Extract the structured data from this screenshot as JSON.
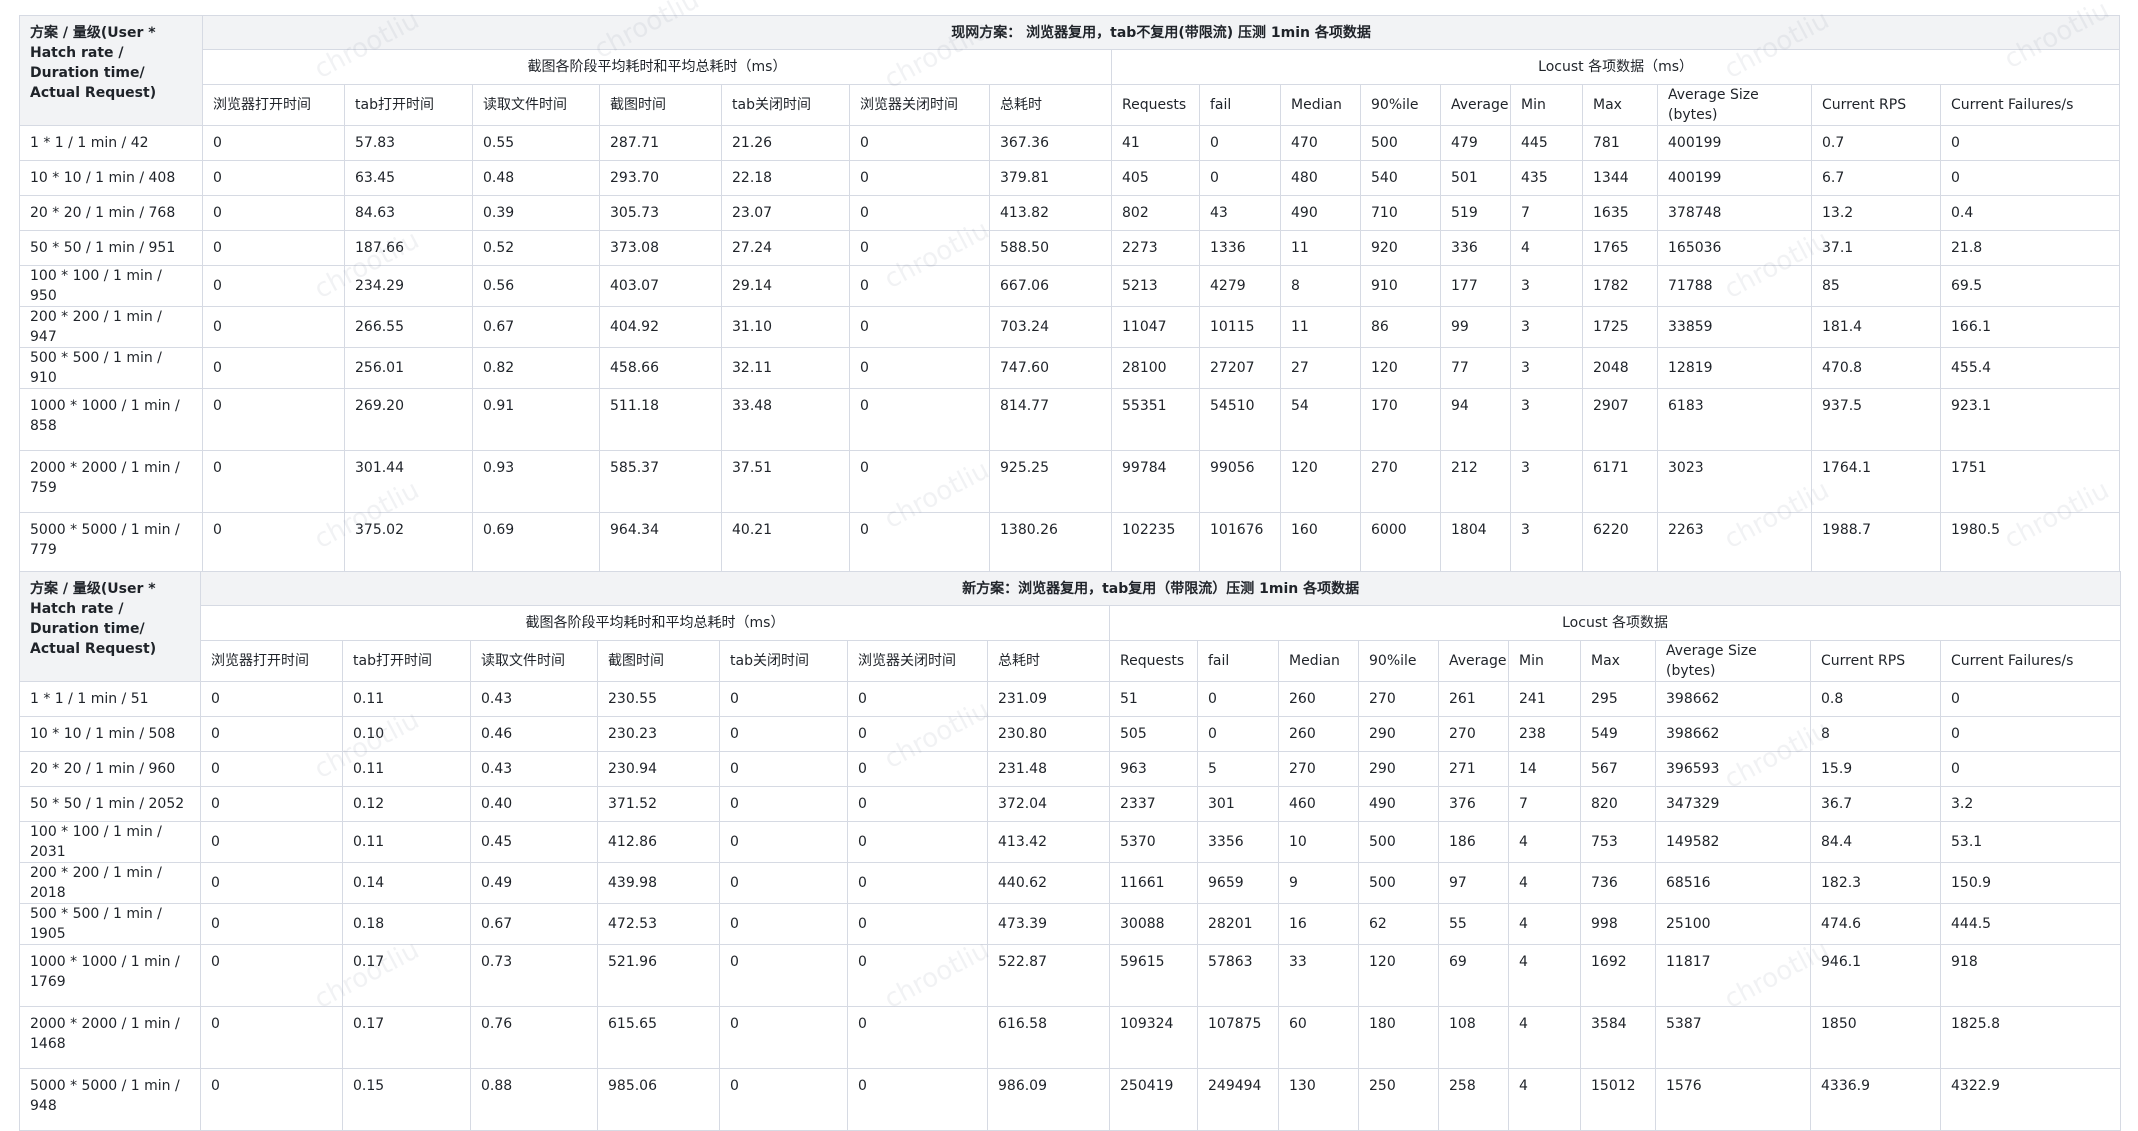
{
  "tables": [
    {
      "corner": "方案 / 量级(User * Hatch rate /  Duration time/ Actual Request)",
      "title": "现网方案：  浏览器复用，tab不复用(带限流) 压测 1min 各项数据",
      "group_left": "截图各阶段平均耗时和平均总耗时（ms）",
      "group_right": "Locust 各项数据（ms）",
      "columns": [
        "浏览器打开时间",
        "tab打开时间",
        "读取文件时间",
        "截图时间",
        "tab关闭时间",
        "浏览器关闭时间",
        "总耗时",
        "Requests",
        "fail",
        "Median",
        "90%ile",
        "Average",
        "Min",
        "Max",
        "Average Size (bytes)",
        "Current RPS",
        "Current Failures/s"
      ],
      "rows": [
        [
          "1 * 1 / 1 min / 42",
          "0",
          "57.83",
          "0.55",
          "287.71",
          "21.26",
          "0",
          "367.36",
          "41",
          "0",
          "470",
          "500",
          "479",
          "445",
          "781",
          "400199",
          "0.7",
          "0"
        ],
        [
          "10 * 10 / 1 min / 408",
          "0",
          "63.45",
          "0.48",
          "293.70",
          "22.18",
          "0",
          "379.81",
          "405",
          "0",
          "480",
          "540",
          "501",
          "435",
          "1344",
          "400199",
          "6.7",
          "0"
        ],
        [
          "20 * 20 / 1 min / 768",
          "0",
          "84.63",
          "0.39",
          "305.73",
          "23.07",
          "0",
          "413.82",
          "802",
          "43",
          "490",
          "710",
          "519",
          "7",
          "1635",
          "378748",
          "13.2",
          "0.4"
        ],
        [
          "50 * 50 / 1 min / 951",
          "0",
          "187.66",
          "0.52",
          "373.08",
          "27.24",
          "0",
          "588.50",
          "2273",
          "1336",
          "11",
          "920",
          "336",
          "4",
          "1765",
          "165036",
          "37.1",
          "21.8"
        ],
        [
          "100 * 100 / 1 min / 950",
          "0",
          "234.29",
          "0.56",
          "403.07",
          "29.14",
          "0",
          "667.06",
          "5213",
          "4279",
          "8",
          "910",
          "177",
          "3",
          "1782",
          "71788",
          "85",
          "69.5"
        ],
        [
          "200 * 200 / 1 min / 947",
          "0",
          "266.55",
          "0.67",
          "404.92",
          "31.10",
          "0",
          "703.24",
          "11047",
          "10115",
          "11",
          "86",
          "99",
          "3",
          "1725",
          "33859",
          "181.4",
          "166.1"
        ],
        [
          "500 * 500 / 1 min / 910",
          "0",
          "256.01",
          "0.82",
          "458.66",
          "32.11",
          "0",
          "747.60",
          "28100",
          "27207",
          "27",
          "120",
          "77",
          "3",
          "2048",
          "12819",
          "470.8",
          "455.4"
        ],
        [
          "1000 * 1000 / 1 min / 858",
          "0",
          "269.20",
          "0.91",
          "511.18",
          "33.48",
          "0",
          "814.77",
          "55351",
          "54510",
          "54",
          "170",
          "94",
          "3",
          "2907",
          "6183",
          "937.5",
          "923.1"
        ],
        [
          "2000 * 2000 / 1 min / 759",
          "0",
          "301.44",
          "0.93",
          "585.37",
          "37.51",
          "0",
          "925.25",
          "99784",
          "99056",
          "120",
          "270",
          "212",
          "3",
          "6171",
          "3023",
          "1764.1",
          "1751"
        ],
        [
          "5000 * 5000 / 1 min / 779",
          "0",
          "375.02",
          "0.69",
          "964.34",
          "40.21",
          "0",
          "1380.26",
          "102235",
          "101676",
          "160",
          "6000",
          "1804",
          "3",
          "6220",
          "2263",
          "1988.7",
          "1980.5"
        ]
      ]
    },
    {
      "corner": "方案 / 量级(User * Hatch rate /  Duration time/ Actual Request)",
      "title": "新方案：浏览器复用，tab复用（带限流）压测 1min 各项数据",
      "group_left": "截图各阶段平均耗时和平均总耗时（ms）",
      "group_right": "Locust 各项数据",
      "columns": [
        "浏览器打开时间",
        "tab打开时间",
        "读取文件时间",
        "截图时间",
        "tab关闭时间",
        "浏览器关闭时间",
        "总耗时",
        "Requests",
        "fail",
        "Median",
        "90%ile",
        "Average",
        "Min",
        "Max",
        "Average Size (bytes)",
        "Current RPS",
        "Current Failures/s"
      ],
      "rows": [
        [
          "1 * 1 / 1 min / 51",
          "0",
          "0.11",
          "0.43",
          "230.55",
          "0",
          "0",
          "231.09",
          "51",
          "0",
          "260",
          "270",
          "261",
          "241",
          "295",
          "398662",
          "0.8",
          "0"
        ],
        [
          "10 * 10 / 1 min / 508",
          "0",
          "0.10",
          "0.46",
          "230.23",
          "0",
          "0",
          "230.80",
          "505",
          "0",
          "260",
          "290",
          "270",
          "238",
          "549",
          "398662",
          "8",
          "0"
        ],
        [
          "20 * 20 / 1 min / 960",
          "0",
          "0.11",
          "0.43",
          "230.94",
          "0",
          "0",
          "231.48",
          "963",
          "5",
          "270",
          "290",
          "271",
          "14",
          "567",
          "396593",
          "15.9",
          "0"
        ],
        [
          "50 * 50 / 1 min /  2052",
          "0",
          "0.12",
          "0.40",
          "371.52",
          "0",
          "0",
          "372.04",
          "2337",
          "301",
          "460",
          "490",
          "376",
          "7",
          "820",
          "347329",
          "36.7",
          "3.2"
        ],
        [
          "100 * 100 / 1 min / 2031",
          "0",
          "0.11",
          "0.45",
          "412.86",
          "0",
          "0",
          "413.42",
          "5370",
          "3356",
          "10",
          "500",
          "186",
          "4",
          "753",
          "149582",
          "84.4",
          "53.1"
        ],
        [
          "200 * 200 / 1 min / 2018",
          "0",
          "0.14",
          "0.49",
          "439.98",
          "0",
          "0",
          "440.62",
          "11661",
          "9659",
          "9",
          "500",
          "97",
          "4",
          "736",
          "68516",
          "182.3",
          "150.9"
        ],
        [
          "500 * 500 / 1 min / 1905",
          "0",
          "0.18",
          "0.67",
          "472.53",
          "0",
          "0",
          "473.39",
          "30088",
          "28201",
          "16",
          "62",
          "55",
          "4",
          "998",
          "25100",
          "474.6",
          "444.5"
        ],
        [
          "1000 * 1000 / 1 min / 1769",
          "0",
          "0.17",
          "0.73",
          "521.96",
          "0",
          "0",
          "522.87",
          "59615",
          "57863",
          "33",
          "120",
          "69",
          "4",
          "1692",
          "11817",
          "946.1",
          "918"
        ],
        [
          "2000 * 2000 / 1 min / 1468",
          "0",
          "0.17",
          "0.76",
          "615.65",
          "0",
          "0",
          "616.58",
          "109324",
          "107875",
          "60",
          "180",
          "108",
          "4",
          "3584",
          "5387",
          "1850",
          "1825.8"
        ],
        [
          "5000 * 5000 / 1 min / 948",
          "0",
          "0.15",
          "0.88",
          "985.06",
          "0",
          "0",
          "986.09",
          "250419",
          "249494",
          "130",
          "250",
          "258",
          "4",
          "15012",
          "1576",
          "4336.9",
          "4322.9"
        ]
      ]
    }
  ],
  "watermark": "chrootliu"
}
